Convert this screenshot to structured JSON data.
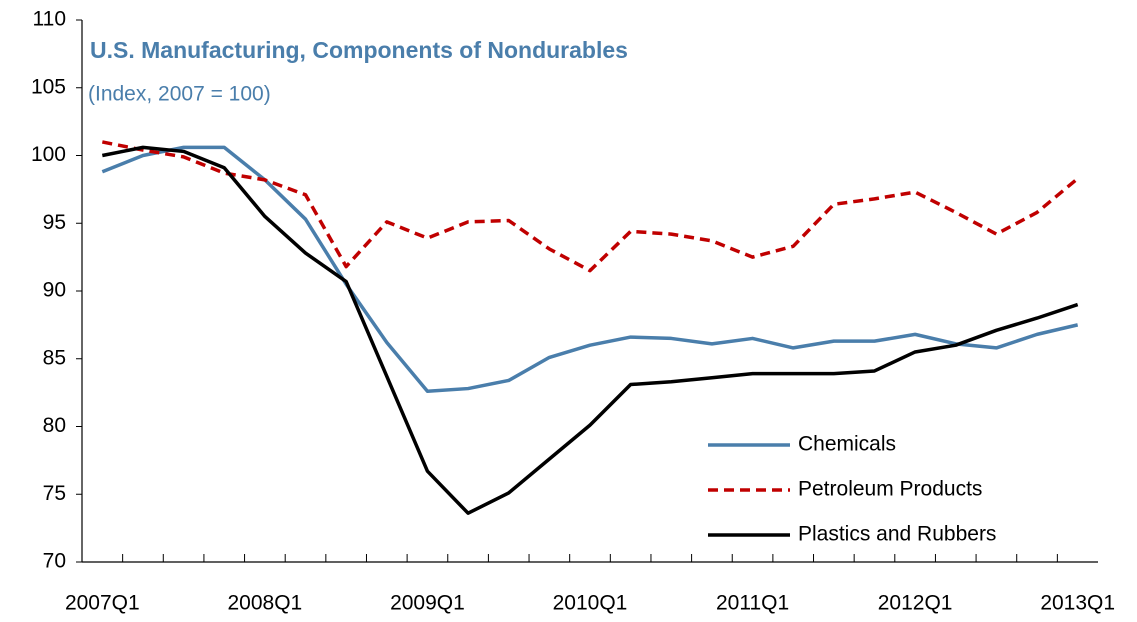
{
  "chart_data": {
    "type": "line",
    "title": "U.S. Manufacturing,  Components of Nondurables",
    "subtitle": "(Index, 2007 = 100)",
    "categories": [
      "2007Q1",
      null,
      null,
      null,
      "2008Q1",
      null,
      null,
      null,
      "2009Q1",
      null,
      null,
      null,
      "2010Q1",
      null,
      null,
      null,
      "2011Q1",
      null,
      null,
      null,
      "2012Q1",
      null,
      null,
      null,
      "2013Q1"
    ],
    "series": [
      {
        "name": "Chemicals",
        "color": "#4a7eab",
        "dash": "solid",
        "values": [
          98.8,
          100.0,
          100.6,
          100.6,
          98.2,
          95.3,
          90.5,
          86.2,
          82.6,
          82.8,
          83.4,
          85.1,
          86.0,
          86.6,
          86.5,
          86.1,
          86.5,
          85.8,
          86.3,
          86.3,
          86.8,
          86.1,
          85.8,
          86.8,
          87.5
        ]
      },
      {
        "name": "Petroleum Products",
        "color": "#c00000",
        "dash": "dashed",
        "values": [
          101.0,
          100.4,
          99.9,
          98.7,
          98.2,
          97.1,
          91.8,
          95.1,
          93.9,
          95.1,
          95.2,
          93.1,
          91.5,
          94.4,
          94.2,
          93.7,
          92.5,
          93.3,
          96.4,
          96.8,
          97.3,
          95.8,
          94.2,
          95.8,
          98.3
        ]
      },
      {
        "name": "Plastics and Rubbers",
        "color": "#000000",
        "dash": "solid",
        "values": [
          100.0,
          100.6,
          100.3,
          99.1,
          95.5,
          92.8,
          90.7,
          83.7,
          76.7,
          73.6,
          75.1,
          77.6,
          80.1,
          83.1,
          83.3,
          83.6,
          83.9,
          83.9,
          83.9,
          84.1,
          85.5,
          86.0,
          87.1,
          88.0,
          89.0
        ]
      }
    ],
    "ylim": [
      70,
      110
    ],
    "yticks": [
      70,
      75,
      80,
      85,
      90,
      95,
      100,
      105,
      110
    ],
    "grid": false,
    "legend": "lower right"
  }
}
